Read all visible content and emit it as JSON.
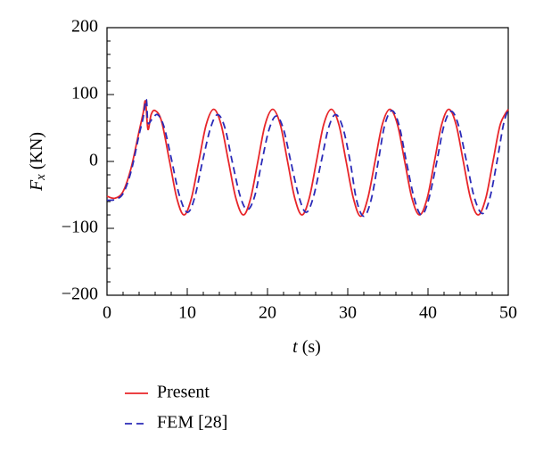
{
  "chart_data": {
    "type": "line",
    "xlabel": {
      "symbol": "t",
      "unit": "(s)"
    },
    "ylabel": {
      "symbol": "F",
      "subscript": "x",
      "unit": "(KN)"
    },
    "xlim": [
      0,
      50
    ],
    "xticks": [
      0,
      10,
      20,
      30,
      40,
      50
    ],
    "ylim": [
      -200,
      200
    ],
    "yticks": [
      {
        "value": -200,
        "label": "−200"
      },
      {
        "value": -100,
        "label": "−100"
      },
      0,
      100,
      200
    ],
    "minor_per_major": 4,
    "legend": "bottom-left",
    "series": [
      {
        "name": "Present",
        "color": "#e8262a",
        "dash": false,
        "x": [
          0,
          1,
          2,
          3,
          4,
          4.5,
          4.8,
          5.1,
          5.5,
          6,
          6.8,
          7.8,
          8.7,
          9.6,
          10.52,
          11.44,
          12.36,
          13.3,
          14.22,
          15.14,
          16.06,
          17.0,
          17.9,
          18.8,
          19.7,
          20.65,
          21.6,
          22.5,
          23.4,
          24.3,
          25.2,
          26.1,
          27.0,
          27.95,
          28.9,
          29.8,
          30.7,
          31.6,
          32.5,
          33.4,
          34.3,
          35.25,
          36.2,
          37.1,
          38.0,
          38.95,
          39.9,
          40.8,
          41.7,
          42.6,
          43.5,
          44.4,
          45.3,
          46.25,
          47.2,
          48.1,
          49.0,
          50
        ],
        "values": [
          -52,
          -55,
          -45,
          -10,
          45,
          72,
          90,
          48,
          70,
          76,
          60,
          0,
          -55,
          -80,
          -55,
          0,
          55,
          78,
          55,
          0,
          -55,
          -80,
          -55,
          0,
          55,
          78,
          55,
          0,
          -55,
          -80,
          -55,
          0,
          55,
          78,
          55,
          0,
          -55,
          -82,
          -55,
          0,
          55,
          78,
          55,
          0,
          -55,
          -80,
          -55,
          0,
          55,
          78,
          55,
          0,
          -55,
          -80,
          -55,
          0,
          55,
          78
        ]
      },
      {
        "name": "FEM [28]",
        "color": "#2b2bb8",
        "dash": true,
        "x": [
          0,
          1,
          2,
          3,
          4,
          4.5,
          4.9,
          5.1,
          5.6,
          6.3,
          7.1,
          8.0,
          9.0,
          10.0,
          10.9,
          11.9,
          12.9,
          13.8,
          14.7,
          15.6,
          16.6,
          17.5,
          18.4,
          19.3,
          20.2,
          21.1,
          22.0,
          22.9,
          23.9,
          24.8,
          25.7,
          26.7,
          27.6,
          28.5,
          29.4,
          30.3,
          31.1,
          32.0,
          32.9,
          33.8,
          34.6,
          35.5,
          36.4,
          37.3,
          38.3,
          39.2,
          40.1,
          41.1,
          42.0,
          42.9,
          43.8,
          44.8,
          45.8,
          46.8,
          47.7,
          48.6,
          49.4,
          50
        ],
        "values": [
          -58,
          -57,
          -48,
          -15,
          40,
          65,
          93,
          58,
          63,
          70,
          52,
          5,
          -50,
          -76,
          -55,
          0,
          50,
          70,
          50,
          0,
          -52,
          -72,
          -52,
          0,
          48,
          68,
          48,
          0,
          -52,
          -76,
          -54,
          0,
          50,
          70,
          50,
          0,
          -58,
          -82,
          -58,
          0,
          54,
          76,
          54,
          0,
          -56,
          -80,
          -56,
          0,
          54,
          75,
          54,
          0,
          -55,
          -78,
          -55,
          0,
          55,
          78
        ]
      }
    ]
  }
}
